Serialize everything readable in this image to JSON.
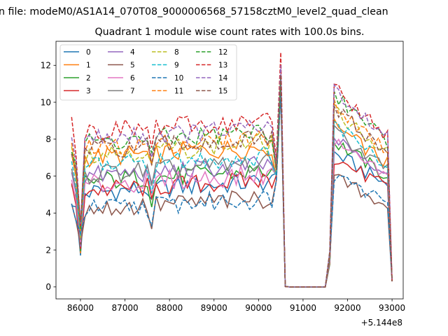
{
  "figure": {
    "suptitle": "n file: modeM0/AS1A14_070T08_9000006568_57158cztM0_level2_quad_clean",
    "offset_label": "+5.144e8"
  },
  "chart_data": {
    "type": "line",
    "title": "Quadrant 1 module wise count rates with 100.0s bins.",
    "xlabel": "",
    "ylabel": "",
    "x_offset": 514400000,
    "xlim": [
      85450,
      93250
    ],
    "ylim": [
      -0.65,
      13.3
    ],
    "xticks": [
      86000,
      87000,
      88000,
      89000,
      90000,
      91000,
      92000,
      93000
    ],
    "yticks": [
      0,
      2,
      4,
      6,
      8,
      10,
      12
    ],
    "legend": {
      "position": "top-left",
      "columns": 4
    },
    "colors": [
      "#1f77b4",
      "#ff7f0e",
      "#2ca02c",
      "#d62728",
      "#9467bd",
      "#8c564b",
      "#e377c2",
      "#7f7f7f",
      "#bcbd22",
      "#17becf",
      "#1f77b4",
      "#ff7f0e",
      "#2ca02c",
      "#d62728",
      "#9467bd",
      "#8c564b"
    ],
    "series": [
      {
        "name": "0",
        "dashed": false,
        "base": 5.1,
        "start": 4.4,
        "peak": 11.2,
        "post": 5.8
      },
      {
        "name": "1",
        "dashed": false,
        "base": 7.0,
        "start": 7.2,
        "peak": 10.8,
        "post": 7.0
      },
      {
        "name": "2",
        "dashed": false,
        "base": 5.7,
        "start": 5.5,
        "peak": 11.0,
        "post": 6.3
      },
      {
        "name": "3",
        "dashed": false,
        "base": 5.2,
        "start": 5.6,
        "peak": 11.0,
        "post": 5.6
      },
      {
        "name": "4",
        "dashed": false,
        "base": 6.0,
        "start": 6.2,
        "peak": 11.2,
        "post": 6.5
      },
      {
        "name": "5",
        "dashed": false,
        "base": 4.2,
        "start": 4.5,
        "peak": 10.5,
        "post": 4.7
      },
      {
        "name": "6",
        "dashed": false,
        "base": 5.5,
        "start": 5.8,
        "peak": 11.0,
        "post": 6.2
      },
      {
        "name": "7",
        "dashed": false,
        "base": 6.1,
        "start": 6.4,
        "peak": 11.0,
        "post": 6.7
      },
      {
        "name": "8",
        "dashed": true,
        "base": 7.2,
        "start": 7.6,
        "peak": 11.2,
        "post": 7.6
      },
      {
        "name": "9",
        "dashed": true,
        "base": 6.5,
        "start": 6.8,
        "peak": 11.0,
        "post": 7.0
      },
      {
        "name": "10",
        "dashed": true,
        "base": 4.2,
        "start": 4.5,
        "peak": 10.5,
        "post": 4.8
      },
      {
        "name": "11",
        "dashed": true,
        "base": 7.5,
        "start": 7.8,
        "peak": 11.5,
        "post": 7.8
      },
      {
        "name": "12",
        "dashed": true,
        "base": 7.8,
        "start": 7.3,
        "peak": 11.5,
        "post": 8.3
      },
      {
        "name": "13",
        "dashed": true,
        "base": 8.4,
        "start": 9.2,
        "peak": 12.7,
        "post": 8.6
      },
      {
        "name": "14",
        "dashed": true,
        "base": 8.0,
        "start": 8.1,
        "peak": 12.0,
        "post": 8.6
      },
      {
        "name": "15",
        "dashed": true,
        "base": 7.4,
        "start": 7.2,
        "peak": 11.5,
        "post": 7.7
      }
    ]
  }
}
